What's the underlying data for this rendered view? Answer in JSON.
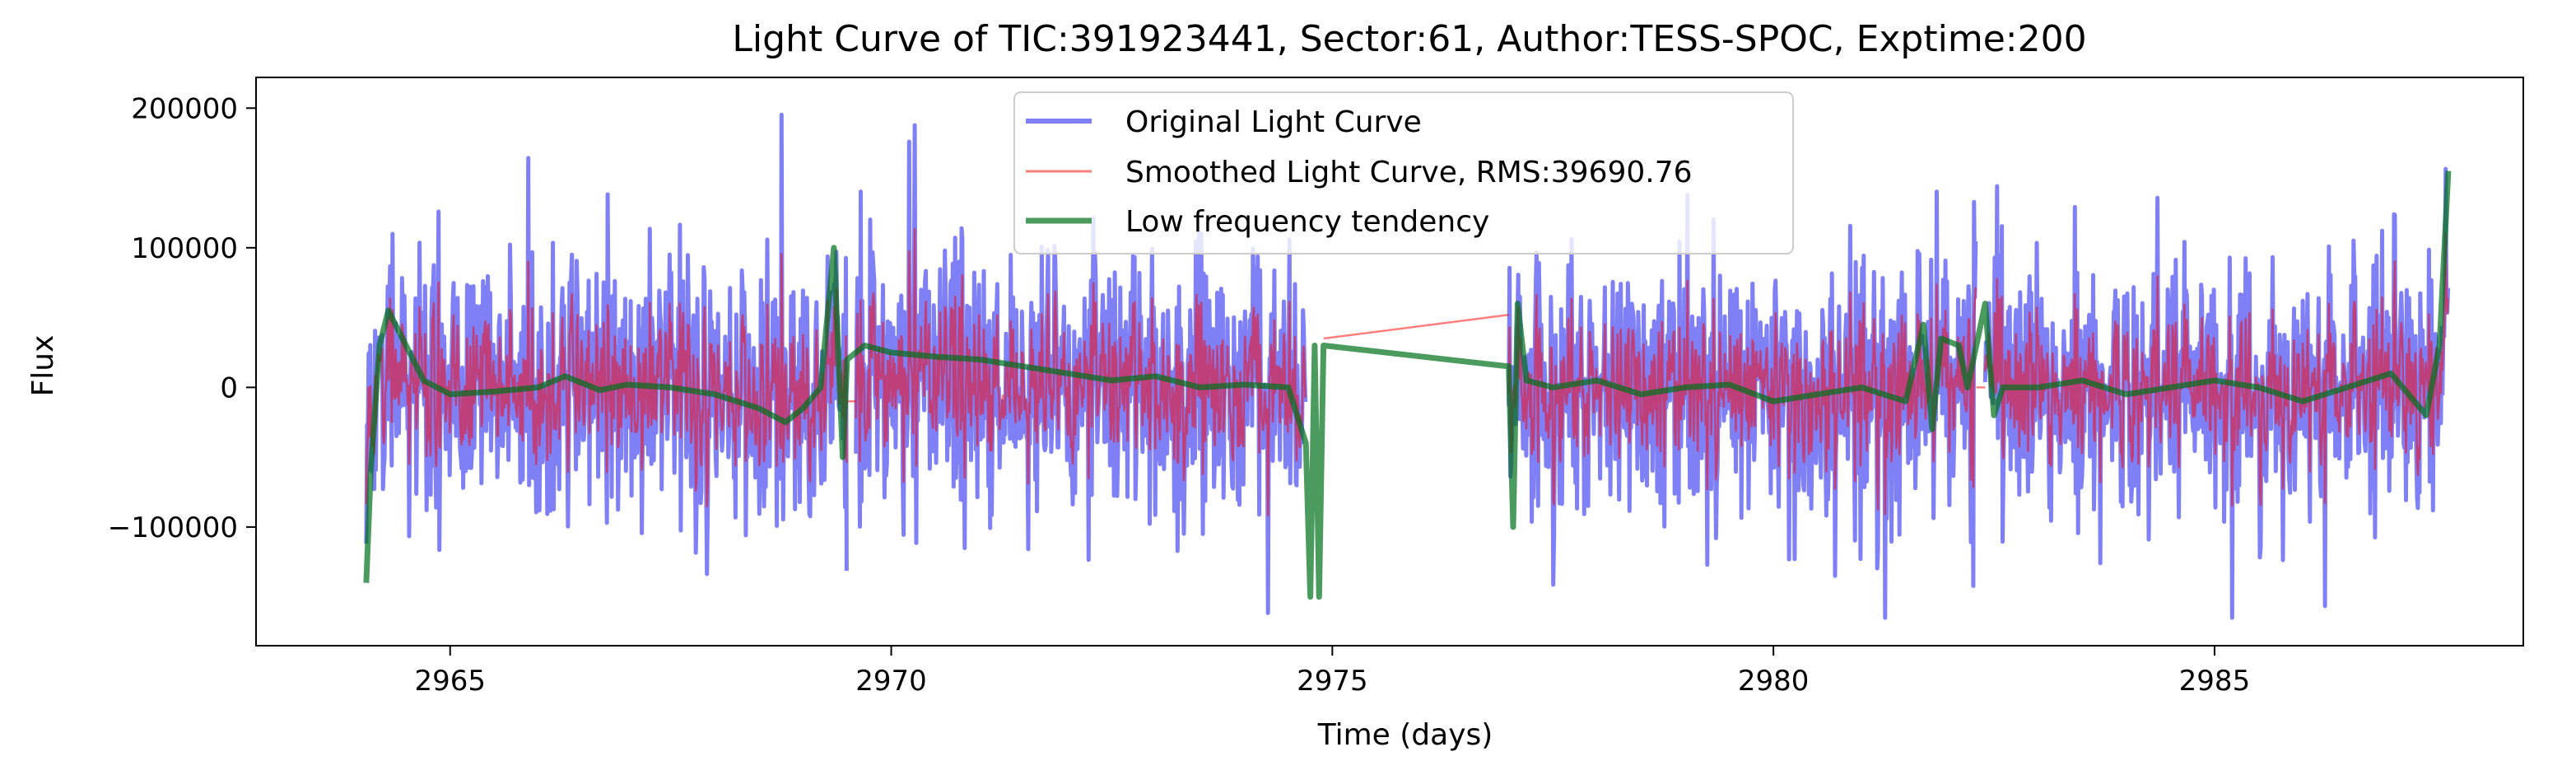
{
  "chart_data": {
    "type": "line",
    "title": "Light Curve of TIC:391923441, Sector:61, Author:TESS-SPOC, Exptime:200",
    "xlabel": "Time (days)",
    "ylabel": "Flux",
    "xlim": [
      2962.8,
      2988.5
    ],
    "ylim": [
      -185000,
      222000
    ],
    "xticks": [
      2965,
      2970,
      2975,
      2980,
      2985
    ],
    "xtick_labels": [
      "2965",
      "2970",
      "2975",
      "2980",
      "2985"
    ],
    "yticks": [
      -100000,
      0,
      100000,
      200000
    ],
    "ytick_labels": [
      "−100000",
      "0",
      "100000",
      "200000"
    ],
    "grid": false,
    "legend_position": "top-center",
    "segments": [
      [
        2964.05,
        2969.5
      ],
      [
        2969.6,
        2974.7
      ],
      [
        2977.0,
        2982.3
      ],
      [
        2982.4,
        2987.65
      ]
    ],
    "series": [
      {
        "name": "Original Light Curve",
        "color": "#0000ee",
        "alpha": 0.5,
        "style": "thick",
        "approx_amplitude": 60000,
        "approx_extremes": [
          -165000,
          205000
        ]
      },
      {
        "name": "Smoothed Light Curve, RMS:39690.76",
        "color": "#ff0000",
        "alpha": 0.5,
        "style": "thin",
        "rms": 39690.76
      },
      {
        "name": "Low frequency tendency",
        "color": "#00701a",
        "alpha": 0.7,
        "style": "trend",
        "points": [
          [
            2964.05,
            -140000
          ],
          [
            2964.1,
            -60000
          ],
          [
            2964.2,
            30000
          ],
          [
            2964.3,
            55000
          ],
          [
            2964.5,
            30000
          ],
          [
            2964.7,
            5000
          ],
          [
            2965.0,
            -5000
          ],
          [
            2965.5,
            -3000
          ],
          [
            2966.0,
            0
          ],
          [
            2966.3,
            8000
          ],
          [
            2966.7,
            -2000
          ],
          [
            2967.0,
            2000
          ],
          [
            2967.5,
            0
          ],
          [
            2968.0,
            -5000
          ],
          [
            2968.5,
            -15000
          ],
          [
            2968.8,
            -25000
          ],
          [
            2969.0,
            -15000
          ],
          [
            2969.2,
            0
          ],
          [
            2969.35,
            100000
          ],
          [
            2969.45,
            -50000
          ],
          [
            2969.5,
            20000
          ],
          [
            2969.6,
            25000
          ],
          [
            2969.7,
            30000
          ],
          [
            2970.0,
            25000
          ],
          [
            2970.5,
            22000
          ],
          [
            2971.0,
            20000
          ],
          [
            2971.5,
            15000
          ],
          [
            2972.0,
            10000
          ],
          [
            2972.5,
            5000
          ],
          [
            2973.0,
            8000
          ],
          [
            2973.5,
            0
          ],
          [
            2974.0,
            2000
          ],
          [
            2974.5,
            0
          ],
          [
            2974.7,
            -40000
          ],
          [
            2974.75,
            -150000
          ],
          [
            2974.8,
            30000
          ],
          [
            2974.85,
            -150000
          ],
          [
            2974.9,
            30000
          ],
          [
            2977.0,
            15000
          ],
          [
            2977.05,
            -100000
          ],
          [
            2977.1,
            60000
          ],
          [
            2977.2,
            5000
          ],
          [
            2977.5,
            0
          ],
          [
            2978.0,
            5000
          ],
          [
            2978.5,
            -5000
          ],
          [
            2979.0,
            0
          ],
          [
            2979.5,
            2000
          ],
          [
            2980.0,
            -10000
          ],
          [
            2980.5,
            -5000
          ],
          [
            2981.0,
            0
          ],
          [
            2981.5,
            -10000
          ],
          [
            2981.7,
            45000
          ],
          [
            2981.8,
            -30000
          ],
          [
            2981.9,
            35000
          ],
          [
            2982.1,
            30000
          ],
          [
            2982.2,
            0
          ],
          [
            2982.4,
            60000
          ],
          [
            2982.5,
            -20000
          ],
          [
            2982.6,
            0
          ],
          [
            2983.0,
            0
          ],
          [
            2983.5,
            5000
          ],
          [
            2984.0,
            -5000
          ],
          [
            2984.5,
            0
          ],
          [
            2985.0,
            5000
          ],
          [
            2985.5,
            0
          ],
          [
            2986.0,
            -10000
          ],
          [
            2986.5,
            0
          ],
          [
            2987.0,
            10000
          ],
          [
            2987.4,
            -20000
          ],
          [
            2987.55,
            30000
          ],
          [
            2987.65,
            155000
          ]
        ]
      }
    ]
  }
}
